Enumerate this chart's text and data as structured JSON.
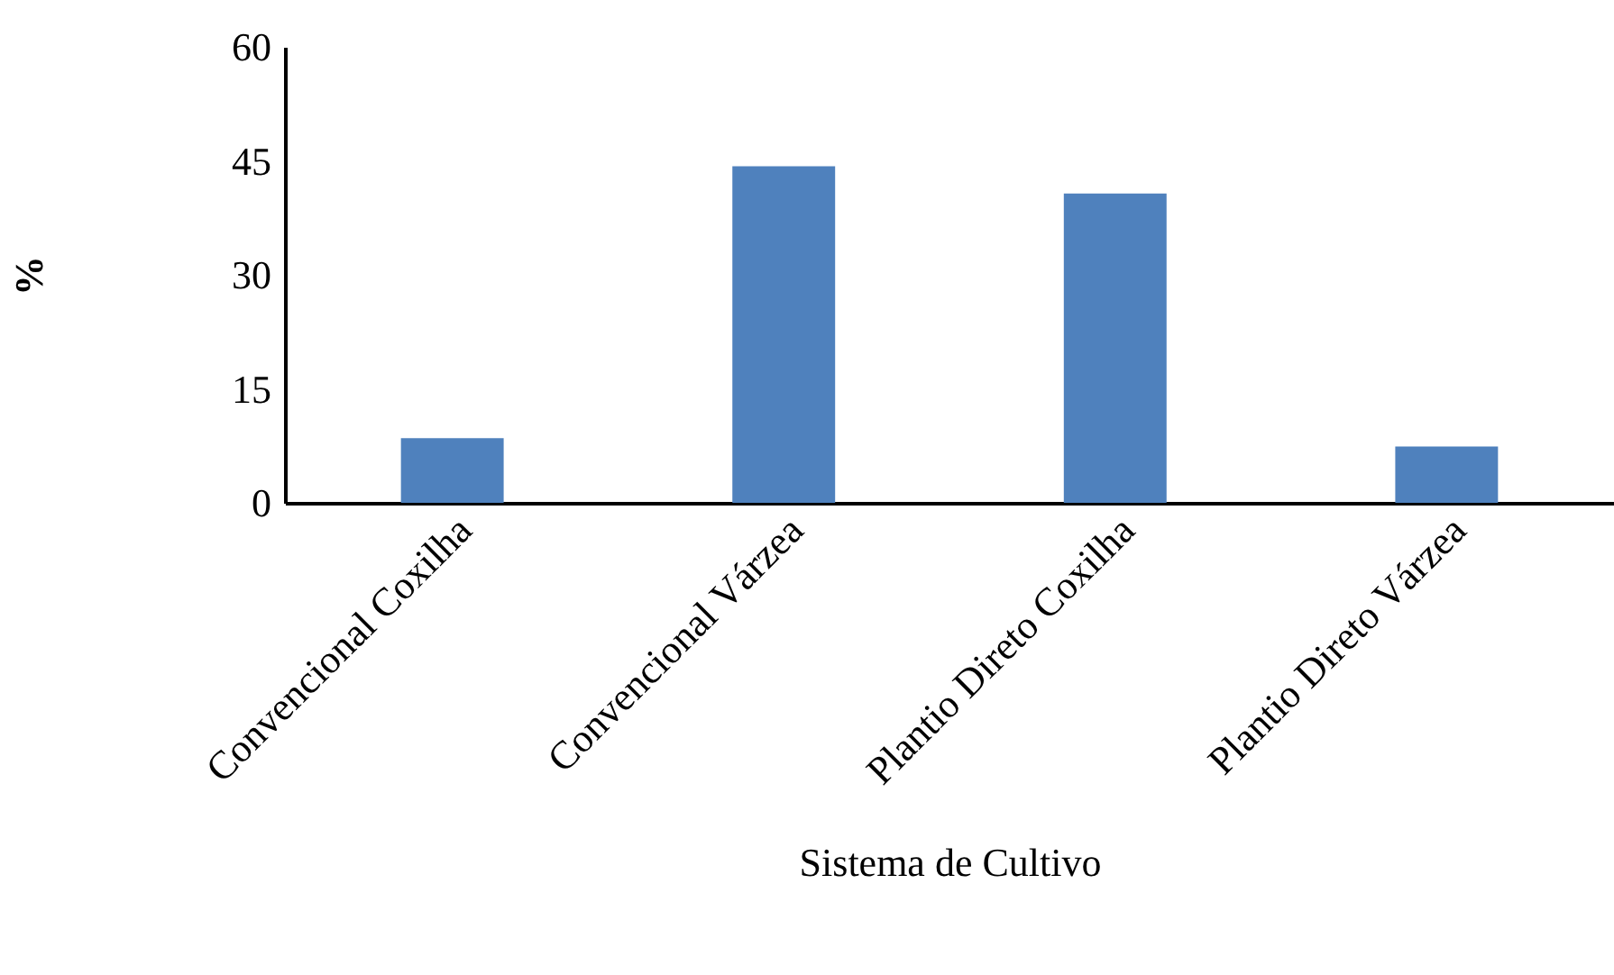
{
  "chart_data": {
    "type": "bar",
    "xlabel": "Sistema de Cultivo",
    "ylabel": "%",
    "categories": [
      "Convencional Coxilha",
      "Convencional Várzea",
      "Plantio Direto Coxilha",
      "Plantio Direto Várzea"
    ],
    "values": [
      8.5,
      44.3,
      40.7,
      7.4
    ],
    "color": "#4f81bd",
    "ylim": [
      0,
      60
    ],
    "yticks": [
      0,
      15,
      30,
      45,
      60
    ],
    "grid": false
  }
}
